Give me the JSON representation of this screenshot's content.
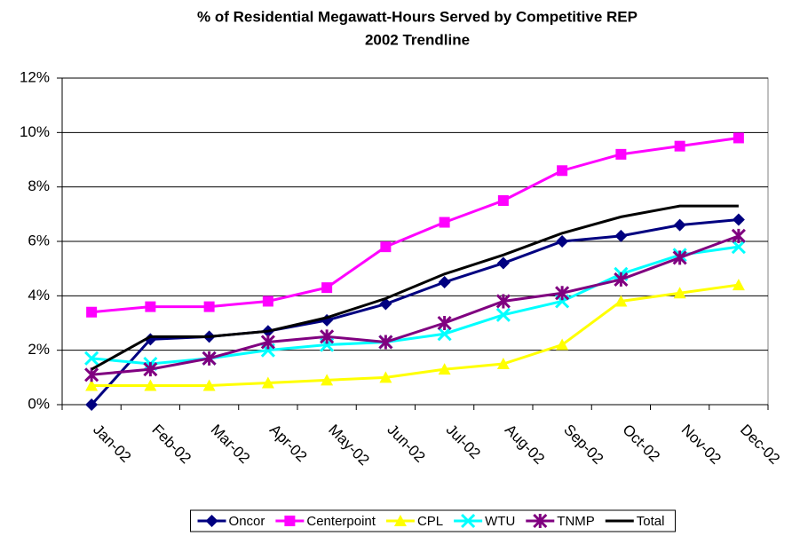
{
  "chart_data": {
    "type": "line",
    "title": "% of Residential Megawatt-Hours Served by Competitive REP",
    "subtitle": "2002 Trendline",
    "categories": [
      "Jan-02",
      "Feb-02",
      "Mar-02",
      "Apr-02",
      "May-02",
      "Jun-02",
      "Jul-02",
      "Aug-02",
      "Sep-02",
      "Oct-02",
      "Nov-02",
      "Dec-02"
    ],
    "series": [
      {
        "name": "Oncor",
        "color": "#000080",
        "marker": "diamond",
        "values": [
          0.0,
          2.4,
          2.5,
          2.7,
          3.1,
          3.7,
          4.5,
          5.2,
          6.0,
          6.2,
          6.6,
          6.8
        ]
      },
      {
        "name": "Centerpoint",
        "color": "#ff00ff",
        "marker": "square",
        "values": [
          3.4,
          3.6,
          3.6,
          3.8,
          4.3,
          5.8,
          6.7,
          7.5,
          8.6,
          9.2,
          9.5,
          9.8
        ]
      },
      {
        "name": "CPL",
        "color": "#ffff00",
        "marker": "triangle",
        "values": [
          0.7,
          0.7,
          0.7,
          0.8,
          0.9,
          1.0,
          1.3,
          1.5,
          2.2,
          3.8,
          4.1,
          4.4
        ]
      },
      {
        "name": "WTU",
        "color": "#00ffff",
        "marker": "cross",
        "values": [
          1.7,
          1.5,
          1.7,
          2.0,
          2.2,
          2.3,
          2.6,
          3.3,
          3.8,
          4.8,
          5.5,
          5.8
        ]
      },
      {
        "name": "TNMP",
        "color": "#800080",
        "marker": "star",
        "values": [
          1.1,
          1.3,
          1.7,
          2.3,
          2.5,
          2.3,
          3.0,
          3.8,
          4.1,
          4.6,
          5.4,
          6.2
        ]
      },
      {
        "name": "Total",
        "color": "#000000",
        "marker": "none",
        "values": [
          1.3,
          2.5,
          2.5,
          2.7,
          3.2,
          3.9,
          4.8,
          5.5,
          6.3,
          6.9,
          7.3,
          7.3
        ]
      }
    ],
    "ylim": [
      0,
      12
    ],
    "yticks": [
      {
        "value": 0,
        "label": "0%"
      },
      {
        "value": 2,
        "label": "2%"
      },
      {
        "value": 4,
        "label": "4%"
      },
      {
        "value": 6,
        "label": "6%"
      },
      {
        "value": 8,
        "label": "8%"
      },
      {
        "value": 10,
        "label": "10%"
      },
      {
        "value": 12,
        "label": "12%"
      }
    ],
    "grid": true,
    "legend": "bottom"
  }
}
